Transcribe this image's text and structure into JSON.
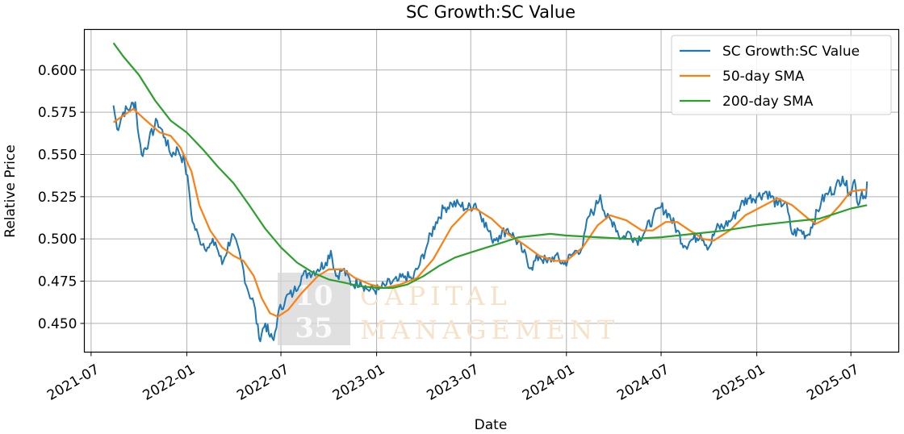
{
  "chart_data": {
    "type": "line",
    "title": "SC Growth:SC Value",
    "xlabel": "Date",
    "ylabel": "Relative Price",
    "xlim": [
      "2021-06-18",
      "2025-10-01"
    ],
    "ylim": [
      0.433,
      0.624
    ],
    "x_ticks": [
      "2021-07",
      "2022-01",
      "2022-07",
      "2023-01",
      "2023-07",
      "2024-01",
      "2024-07",
      "2025-01",
      "2025-07"
    ],
    "y_ticks": [
      0.45,
      0.475,
      0.5,
      0.525,
      0.55,
      0.575,
      0.6
    ],
    "y_tick_labels": [
      "0.450",
      "0.475",
      "0.500",
      "0.525",
      "0.550",
      "0.575",
      "0.600"
    ],
    "grid": true,
    "legend_position": "top-right",
    "series": [
      {
        "name": "SC Growth:SC Value",
        "color": "#1f77b4",
        "points": [
          [
            "2021-08-13",
            0.579
          ],
          [
            "2021-08-20",
            0.565
          ],
          [
            "2021-09-01",
            0.575
          ],
          [
            "2021-09-15",
            0.578
          ],
          [
            "2021-09-24",
            0.581
          ],
          [
            "2021-10-01",
            0.56
          ],
          [
            "2021-10-06",
            0.55
          ],
          [
            "2021-10-20",
            0.558
          ],
          [
            "2021-11-05",
            0.57
          ],
          [
            "2021-11-20",
            0.56
          ],
          [
            "2021-12-01",
            0.55
          ],
          [
            "2021-12-15",
            0.553
          ],
          [
            "2021-12-28",
            0.545
          ],
          [
            "2022-01-05",
            0.53
          ],
          [
            "2022-01-12",
            0.51
          ],
          [
            "2022-01-25",
            0.5
          ],
          [
            "2022-02-10",
            0.495
          ],
          [
            "2022-02-25",
            0.498
          ],
          [
            "2022-03-10",
            0.485
          ],
          [
            "2022-03-29",
            0.503
          ],
          [
            "2022-04-15",
            0.488
          ],
          [
            "2022-04-28",
            0.47
          ],
          [
            "2022-05-10",
            0.462
          ],
          [
            "2022-05-20",
            0.441
          ],
          [
            "2022-06-01",
            0.45
          ],
          [
            "2022-06-10",
            0.442
          ],
          [
            "2022-06-17",
            0.44
          ],
          [
            "2022-06-25",
            0.455
          ],
          [
            "2022-07-10",
            0.465
          ],
          [
            "2022-07-25",
            0.468
          ],
          [
            "2022-08-10",
            0.478
          ],
          [
            "2022-08-25",
            0.48
          ],
          [
            "2022-09-10",
            0.482
          ],
          [
            "2022-09-25",
            0.486
          ],
          [
            "2022-10-05",
            0.493
          ],
          [
            "2022-10-15",
            0.478
          ],
          [
            "2022-10-28",
            0.482
          ],
          [
            "2022-11-15",
            0.473
          ],
          [
            "2022-12-01",
            0.475
          ],
          [
            "2022-12-15",
            0.47
          ],
          [
            "2023-01-05",
            0.47
          ],
          [
            "2023-01-20",
            0.473
          ],
          [
            "2023-02-10",
            0.475
          ],
          [
            "2023-02-25",
            0.478
          ],
          [
            "2023-03-10",
            0.476
          ],
          [
            "2023-03-25",
            0.485
          ],
          [
            "2023-04-10",
            0.498
          ],
          [
            "2023-04-25",
            0.51
          ],
          [
            "2023-05-10",
            0.518
          ],
          [
            "2023-05-25",
            0.521
          ],
          [
            "2023-06-10",
            0.52
          ],
          [
            "2023-06-25",
            0.518
          ],
          [
            "2023-07-10",
            0.521
          ],
          [
            "2023-07-25",
            0.512
          ],
          [
            "2023-08-10",
            0.5
          ],
          [
            "2023-08-25",
            0.502
          ],
          [
            "2023-09-10",
            0.506
          ],
          [
            "2023-09-25",
            0.5
          ],
          [
            "2023-10-10",
            0.492
          ],
          [
            "2023-10-25",
            0.483
          ],
          [
            "2023-11-10",
            0.49
          ],
          [
            "2023-11-25",
            0.486
          ],
          [
            "2023-12-10",
            0.49
          ],
          [
            "2023-12-27",
            0.485
          ],
          [
            "2024-01-10",
            0.49
          ],
          [
            "2024-01-20",
            0.493
          ],
          [
            "2024-02-01",
            0.495
          ],
          [
            "2024-02-12",
            0.513
          ],
          [
            "2024-02-25",
            0.518
          ],
          [
            "2024-03-06",
            0.526
          ],
          [
            "2024-03-18",
            0.512
          ],
          [
            "2024-04-01",
            0.51
          ],
          [
            "2024-04-15",
            0.5
          ],
          [
            "2024-05-01",
            0.504
          ],
          [
            "2024-05-15",
            0.499
          ],
          [
            "2024-06-01",
            0.505
          ],
          [
            "2024-06-15",
            0.512
          ],
          [
            "2024-07-01",
            0.519
          ],
          [
            "2024-07-15",
            0.515
          ],
          [
            "2024-08-01",
            0.505
          ],
          [
            "2024-08-15",
            0.496
          ],
          [
            "2024-09-01",
            0.5
          ],
          [
            "2024-09-15",
            0.503
          ],
          [
            "2024-10-01",
            0.495
          ],
          [
            "2024-10-15",
            0.506
          ],
          [
            "2024-11-01",
            0.508
          ],
          [
            "2024-11-15",
            0.512
          ],
          [
            "2024-12-01",
            0.52
          ],
          [
            "2024-12-15",
            0.524
          ],
          [
            "2025-01-01",
            0.525
          ],
          [
            "2025-01-20",
            0.528
          ],
          [
            "2025-02-10",
            0.52
          ],
          [
            "2025-02-25",
            0.522
          ],
          [
            "2025-03-10",
            0.503
          ],
          [
            "2025-03-25",
            0.505
          ],
          [
            "2025-04-08",
            0.502
          ],
          [
            "2025-04-20",
            0.51
          ],
          [
            "2025-05-05",
            0.522
          ],
          [
            "2025-05-20",
            0.528
          ],
          [
            "2025-06-01",
            0.53
          ],
          [
            "2025-06-15",
            0.537
          ],
          [
            "2025-06-28",
            0.527
          ],
          [
            "2025-07-08",
            0.535
          ],
          [
            "2025-07-15",
            0.52
          ],
          [
            "2025-07-22",
            0.528
          ],
          [
            "2025-07-29",
            0.524
          ],
          [
            "2025-08-01",
            0.534
          ]
        ]
      },
      {
        "name": "50-day SMA",
        "color": "#ff7f0e",
        "points": [
          [
            "2021-08-13",
            0.569
          ],
          [
            "2021-09-01",
            0.573
          ],
          [
            "2021-09-20",
            0.577
          ],
          [
            "2021-10-15",
            0.57
          ],
          [
            "2021-11-10",
            0.563
          ],
          [
            "2021-12-01",
            0.561
          ],
          [
            "2021-12-20",
            0.554
          ],
          [
            "2022-01-10",
            0.54
          ],
          [
            "2022-01-25",
            0.52
          ],
          [
            "2022-02-15",
            0.505
          ],
          [
            "2022-03-10",
            0.495
          ],
          [
            "2022-04-01",
            0.49
          ],
          [
            "2022-04-20",
            0.487
          ],
          [
            "2022-05-10",
            0.478
          ],
          [
            "2022-05-25",
            0.465
          ],
          [
            "2022-06-10",
            0.456
          ],
          [
            "2022-06-25",
            0.454
          ],
          [
            "2022-07-15",
            0.458
          ],
          [
            "2022-08-10",
            0.468
          ],
          [
            "2022-09-10",
            0.478
          ],
          [
            "2022-10-01",
            0.482
          ],
          [
            "2022-10-28",
            0.482
          ],
          [
            "2022-11-20",
            0.477
          ],
          [
            "2022-12-20",
            0.473
          ],
          [
            "2023-01-15",
            0.471
          ],
          [
            "2023-02-15",
            0.473
          ],
          [
            "2023-03-20",
            0.477
          ],
          [
            "2023-04-20",
            0.488
          ],
          [
            "2023-05-25",
            0.507
          ],
          [
            "2023-06-25",
            0.517
          ],
          [
            "2023-07-10",
            0.518
          ],
          [
            "2023-08-10",
            0.512
          ],
          [
            "2023-09-10",
            0.503
          ],
          [
            "2023-10-10",
            0.497
          ],
          [
            "2023-11-10",
            0.49
          ],
          [
            "2023-12-10",
            0.487
          ],
          [
            "2024-01-01",
            0.487
          ],
          [
            "2024-02-01",
            0.495
          ],
          [
            "2024-03-01",
            0.508
          ],
          [
            "2024-03-25",
            0.514
          ],
          [
            "2024-04-25",
            0.511
          ],
          [
            "2024-05-25",
            0.505
          ],
          [
            "2024-06-15",
            0.505
          ],
          [
            "2024-07-10",
            0.51
          ],
          [
            "2024-08-01",
            0.51
          ],
          [
            "2024-08-25",
            0.505
          ],
          [
            "2024-09-20",
            0.5
          ],
          [
            "2024-10-10",
            0.499
          ],
          [
            "2024-11-10",
            0.505
          ],
          [
            "2024-12-10",
            0.514
          ],
          [
            "2025-01-10",
            0.519
          ],
          [
            "2025-02-10",
            0.524
          ],
          [
            "2025-03-10",
            0.52
          ],
          [
            "2025-04-10",
            0.512
          ],
          [
            "2025-04-25",
            0.509
          ],
          [
            "2025-05-20",
            0.513
          ],
          [
            "2025-06-10",
            0.52
          ],
          [
            "2025-06-30",
            0.528
          ],
          [
            "2025-07-20",
            0.529
          ],
          [
            "2025-08-01",
            0.529
          ]
        ]
      },
      {
        "name": "200-day SMA",
        "color": "#2ca02c",
        "points": [
          [
            "2021-08-13",
            0.616
          ],
          [
            "2021-09-01",
            0.608
          ],
          [
            "2021-10-01",
            0.597
          ],
          [
            "2021-11-01",
            0.582
          ],
          [
            "2021-12-01",
            0.57
          ],
          [
            "2022-01-01",
            0.563
          ],
          [
            "2022-02-01",
            0.553
          ],
          [
            "2022-03-01",
            0.543
          ],
          [
            "2022-04-01",
            0.533
          ],
          [
            "2022-05-01",
            0.52
          ],
          [
            "2022-06-01",
            0.506
          ],
          [
            "2022-07-01",
            0.495
          ],
          [
            "2022-08-01",
            0.486
          ],
          [
            "2022-09-01",
            0.48
          ],
          [
            "2022-10-01",
            0.476
          ],
          [
            "2022-11-01",
            0.474
          ],
          [
            "2022-12-01",
            0.472
          ],
          [
            "2023-01-01",
            0.471
          ],
          [
            "2023-02-01",
            0.471
          ],
          [
            "2023-03-01",
            0.473
          ],
          [
            "2023-04-01",
            0.478
          ],
          [
            "2023-05-01",
            0.484
          ],
          [
            "2023-06-01",
            0.489
          ],
          [
            "2023-07-01",
            0.492
          ],
          [
            "2023-08-01",
            0.495
          ],
          [
            "2023-09-01",
            0.498
          ],
          [
            "2023-10-01",
            0.501
          ],
          [
            "2023-11-01",
            0.502
          ],
          [
            "2023-12-01",
            0.503
          ],
          [
            "2024-01-01",
            0.502
          ],
          [
            "2024-03-01",
            0.501
          ],
          [
            "2024-05-01",
            0.5
          ],
          [
            "2024-07-01",
            0.501
          ],
          [
            "2024-09-01",
            0.503
          ],
          [
            "2024-11-01",
            0.505
          ],
          [
            "2025-01-01",
            0.508
          ],
          [
            "2025-03-01",
            0.51
          ],
          [
            "2025-04-01",
            0.511
          ],
          [
            "2025-05-01",
            0.512
          ],
          [
            "2025-06-01",
            0.515
          ],
          [
            "2025-07-01",
            0.518
          ],
          [
            "2025-08-01",
            0.52
          ]
        ]
      }
    ]
  },
  "watermark": {
    "number_top": "10",
    "number_bottom": "35",
    "line1": "CAPITAL",
    "line2": "MANAGEMENT"
  }
}
